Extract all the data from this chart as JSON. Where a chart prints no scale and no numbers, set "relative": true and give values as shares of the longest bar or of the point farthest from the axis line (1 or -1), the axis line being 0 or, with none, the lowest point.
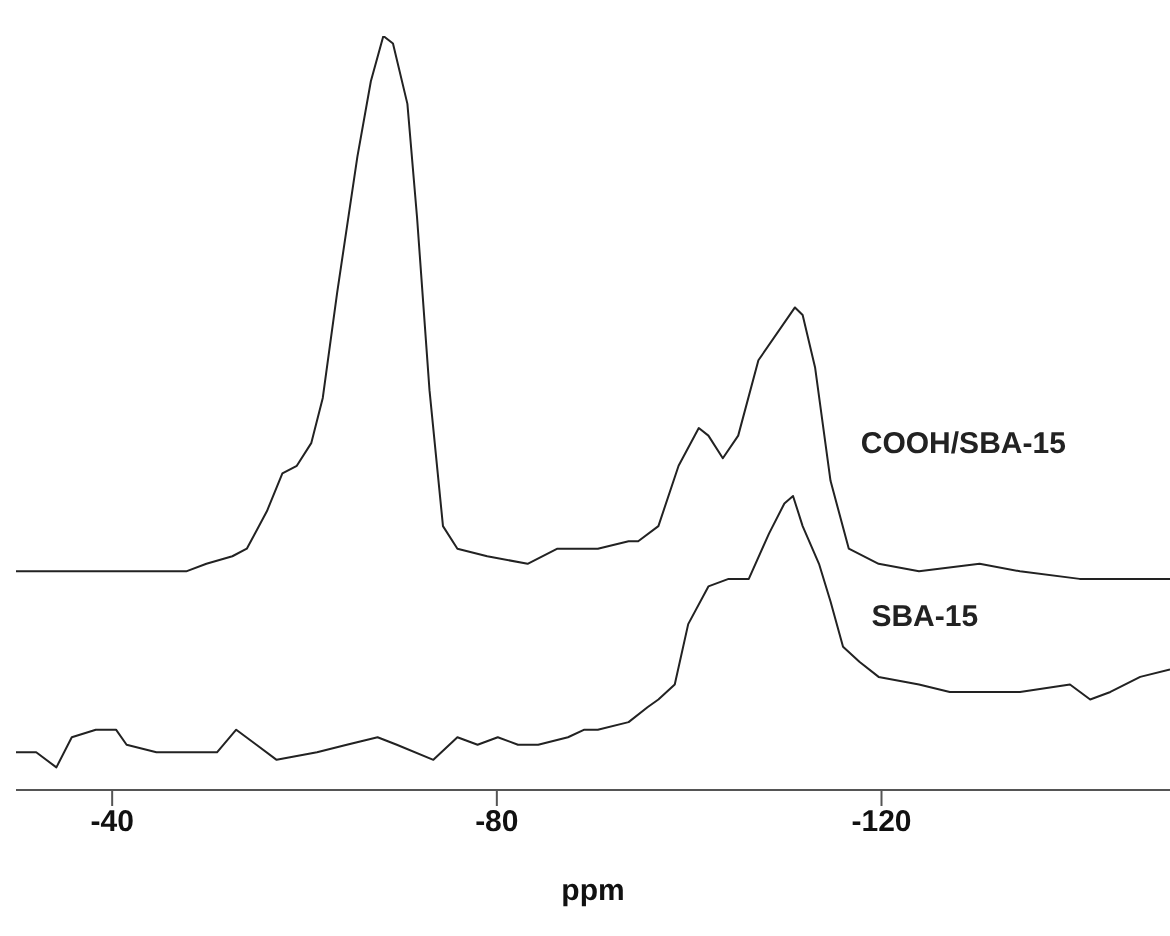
{
  "chart_data": {
    "type": "line",
    "relative": true,
    "xlabel": "ppm",
    "xlim": [
      -30,
      -150
    ],
    "xticks": [
      -40,
      -80,
      -120
    ],
    "grid": false,
    "legend": false,
    "marker": "none",
    "line_style": "solid",
    "series": [
      {
        "name": "COOH/SBA-15",
        "color": "#222222",
        "x": [
          -30.0,
          -34.2,
          -38.3,
          -43.5,
          -47.7,
          -49.8,
          -52.5,
          -54.0,
          -56.1,
          -57.7,
          -59.2,
          -60.7,
          -61.9,
          -63.4,
          -65.5,
          -66.9,
          -68.2,
          -69.2,
          -70.7,
          -71.7,
          -73.0,
          -74.4,
          -75.9,
          -79.0,
          -83.2,
          -86.3,
          -90.5,
          -93.7,
          -94.7,
          -96.8,
          -98.9,
          -101.0,
          -102.0,
          -103.5,
          -105.1,
          -107.2,
          -111.0,
          -111.8,
          -113.1,
          -114.7,
          -116.6,
          -119.7,
          -123.9,
          -130.2,
          -134.4,
          -140.6,
          -150.0
        ],
        "values": [
          0.29,
          0.29,
          0.29,
          0.29,
          0.29,
          0.3,
          0.31,
          0.32,
          0.37,
          0.42,
          0.43,
          0.46,
          0.52,
          0.66,
          0.84,
          0.94,
          1.0,
          0.99,
          0.91,
          0.76,
          0.53,
          0.35,
          0.32,
          0.31,
          0.3,
          0.32,
          0.32,
          0.33,
          0.33,
          0.35,
          0.43,
          0.48,
          0.47,
          0.44,
          0.47,
          0.57,
          0.64,
          0.63,
          0.56,
          0.41,
          0.32,
          0.3,
          0.29,
          0.3,
          0.29,
          0.28,
          0.28
        ]
      },
      {
        "name": "SBA-15",
        "color": "#222222",
        "x": [
          -30.0,
          -32.1,
          -34.2,
          -35.8,
          -38.3,
          -40.4,
          -41.5,
          -44.6,
          -48.8,
          -50.9,
          -52.9,
          -55.0,
          -57.1,
          -61.3,
          -64.4,
          -67.6,
          -69.6,
          -73.4,
          -75.9,
          -78.0,
          -80.1,
          -82.2,
          -84.3,
          -87.4,
          -89.1,
          -90.5,
          -93.7,
          -95.7,
          -96.8,
          -98.5,
          -99.9,
          -102.0,
          -104.1,
          -106.2,
          -108.3,
          -109.9,
          -110.8,
          -111.8,
          -113.5,
          -114.7,
          -116.0,
          -117.7,
          -119.7,
          -123.9,
          -127.1,
          -130.2,
          -134.4,
          -139.6,
          -141.7,
          -143.8,
          -146.9,
          -150.0
        ],
        "values": [
          0.05,
          0.05,
          0.03,
          0.07,
          0.08,
          0.08,
          0.06,
          0.05,
          0.05,
          0.05,
          0.08,
          0.06,
          0.04,
          0.05,
          0.06,
          0.07,
          0.06,
          0.04,
          0.07,
          0.06,
          0.07,
          0.06,
          0.06,
          0.07,
          0.08,
          0.08,
          0.09,
          0.11,
          0.12,
          0.14,
          0.22,
          0.27,
          0.28,
          0.28,
          0.34,
          0.38,
          0.39,
          0.35,
          0.3,
          0.25,
          0.19,
          0.17,
          0.15,
          0.14,
          0.13,
          0.13,
          0.13,
          0.14,
          0.12,
          0.13,
          0.15,
          0.16
        ]
      }
    ]
  }
}
